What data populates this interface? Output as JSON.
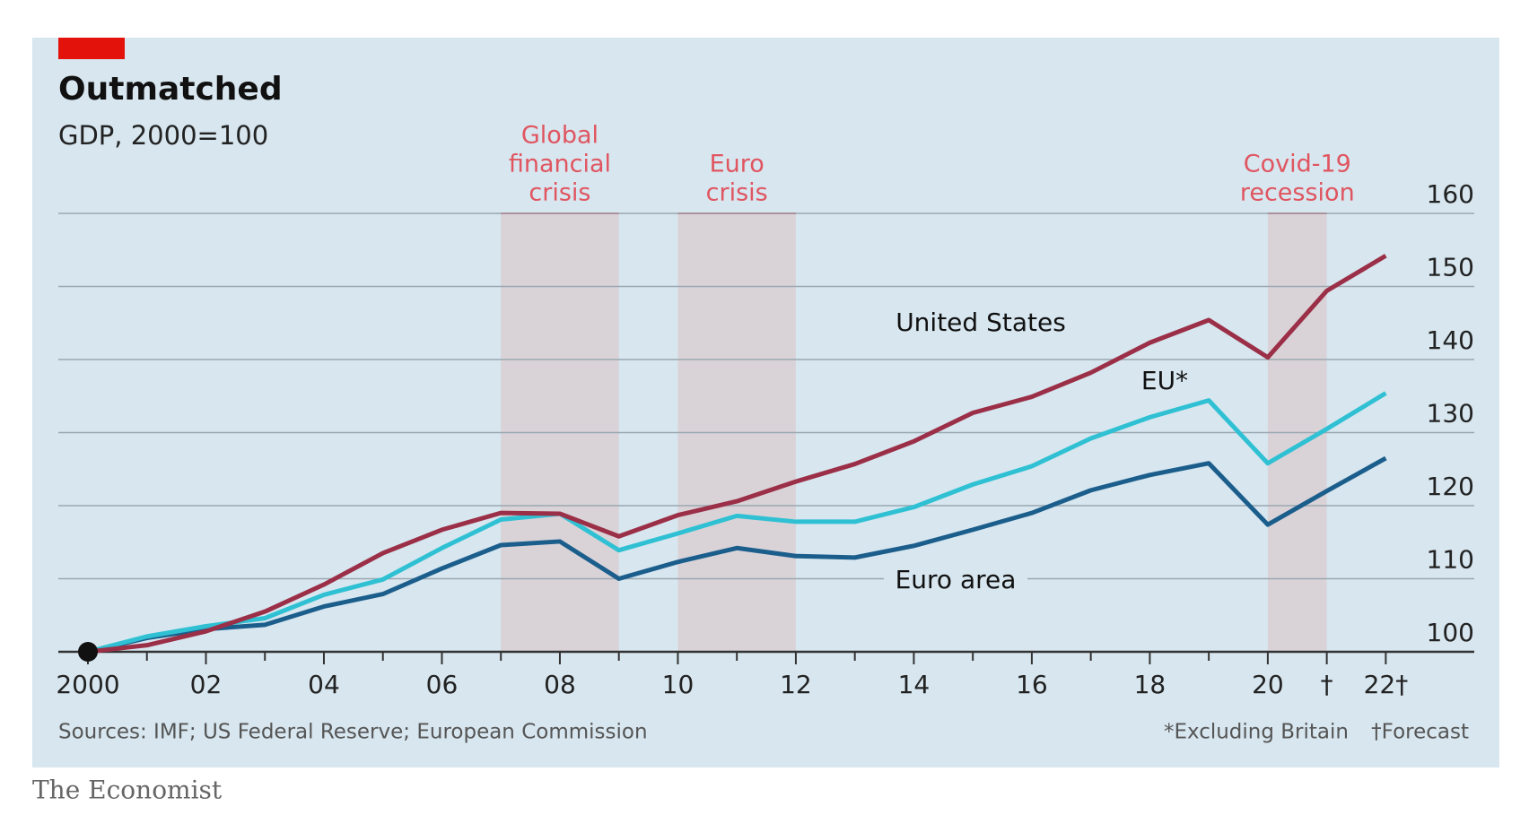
{
  "chart_data": {
    "type": "line",
    "title": "Outmatched",
    "subtitle": "GDP, 2000=100",
    "x": [
      2000,
      2001,
      2002,
      2003,
      2004,
      2005,
      2006,
      2007,
      2008,
      2009,
      2010,
      2011,
      2012,
      2013,
      2014,
      2015,
      2016,
      2017,
      2018,
      2019,
      2020,
      2021,
      2022
    ],
    "series": [
      {
        "name": "United States",
        "color": "#9b2f47",
        "values": [
          100,
          100.9,
          102.8,
          105.5,
          109.2,
          113.5,
          116.7,
          119,
          118.9,
          115.8,
          118.7,
          120.6,
          123.3,
          125.7,
          128.8,
          132.7,
          134.9,
          138.2,
          142.3,
          145.4,
          140.3,
          149.4,
          154.2
        ]
      },
      {
        "name": "EU*",
        "color": "#2fc1d3",
        "values": [
          100,
          102.1,
          103.5,
          104.6,
          107.8,
          109.9,
          114.2,
          118.1,
          118.9,
          113.9,
          116.2,
          118.6,
          117.8,
          117.8,
          119.8,
          122.9,
          125.4,
          129.2,
          132.1,
          134.4,
          125.8,
          130.5,
          135.4
        ]
      },
      {
        "name": "Euro area",
        "color": "#1b5e8c",
        "values": [
          100,
          101.9,
          103.1,
          103.7,
          106.2,
          107.9,
          111.4,
          114.6,
          115.1,
          110,
          112.3,
          114.2,
          113.1,
          112.9,
          114.5,
          116.7,
          119,
          122.1,
          124.2,
          125.8,
          117.4,
          122,
          126.5
        ]
      }
    ],
    "shaded_regions": [
      {
        "label": [
          "Global",
          "financial",
          "crisis"
        ],
        "x": [
          2007,
          2009
        ]
      },
      {
        "label": [
          "Euro",
          "crisis"
        ],
        "x": [
          2010,
          2012
        ]
      },
      {
        "label": [
          "Covid-19",
          "recession"
        ],
        "x": [
          2020,
          2021
        ]
      }
    ],
    "xlim": [
      2000,
      2023.5
    ],
    "xticks": [
      {
        "value": 2000,
        "label": "2000"
      },
      {
        "value": 2002,
        "label": "02"
      },
      {
        "value": 2004,
        "label": "04"
      },
      {
        "value": 2006,
        "label": "06"
      },
      {
        "value": 2008,
        "label": "08"
      },
      {
        "value": 2010,
        "label": "10"
      },
      {
        "value": 2012,
        "label": "12"
      },
      {
        "value": 2014,
        "label": "14"
      },
      {
        "value": 2016,
        "label": "16"
      },
      {
        "value": 2018,
        "label": "18"
      },
      {
        "value": 2020,
        "label": "20"
      },
      {
        "value": 2021,
        "label": "†"
      },
      {
        "value": 2022,
        "label": "22†"
      }
    ],
    "xminor": [
      2001,
      2003,
      2005,
      2007,
      2009,
      2011,
      2013,
      2015,
      2017,
      2019
    ],
    "ylim": [
      100,
      160
    ],
    "yticks": [
      100,
      110,
      120,
      130,
      140,
      150,
      160
    ],
    "grid": true,
    "source": "Sources: IMF; US Federal Reserve; European Commission",
    "notes": [
      "*Excluding Britain",
      "†Forecast"
    ],
    "publisher": "The Economist"
  }
}
